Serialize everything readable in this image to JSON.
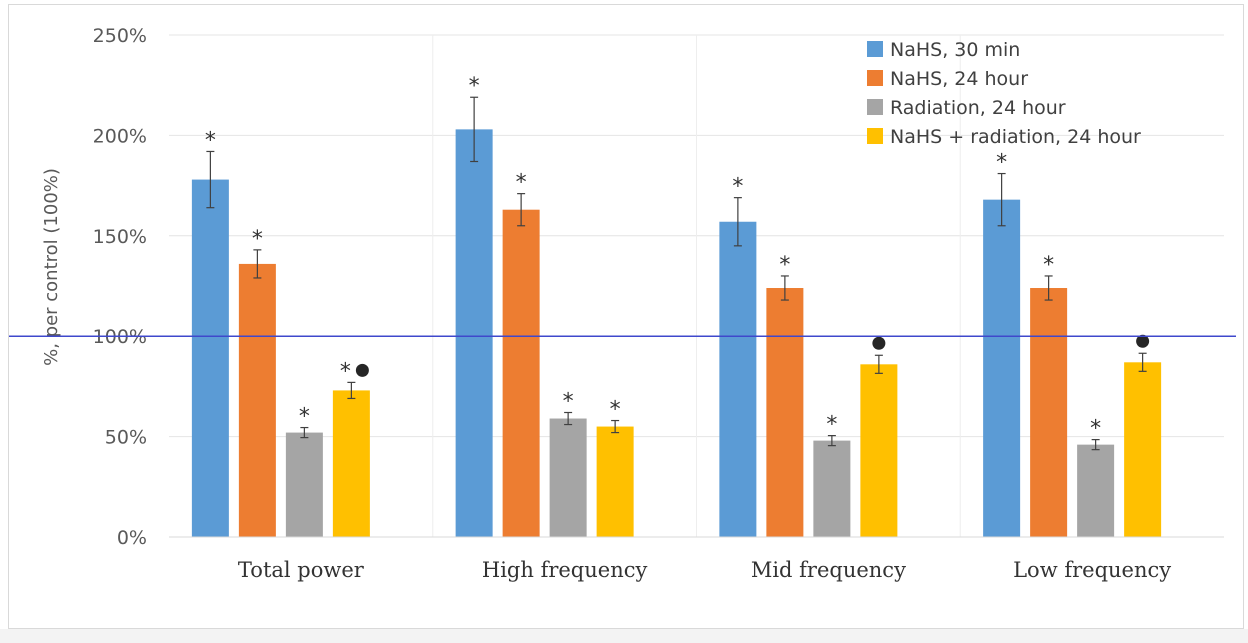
{
  "chart_data": {
    "type": "bar",
    "title": "",
    "xlabel": "",
    "ylabel": "%, per control (100%)",
    "ylim": [
      0,
      250
    ],
    "yticks": [
      "0%",
      "50%",
      "100%",
      "150%",
      "200%",
      "250%"
    ],
    "yticks_values": [
      0,
      50,
      100,
      150,
      200,
      250
    ],
    "grid": true,
    "legend_position": "top-right",
    "reference_line": {
      "value": 100,
      "color": "#3f48cc"
    },
    "categories": [
      "Total power",
      "High frequency",
      "Mid frequency",
      "Low frequency"
    ],
    "series": [
      {
        "name": "NaHS, 30 min",
        "color": "#5b9bd5",
        "values": [
          178,
          203,
          157,
          168
        ],
        "errors": [
          14,
          16,
          12,
          13
        ],
        "marks": [
          "*",
          "*",
          "*",
          "*"
        ]
      },
      {
        "name": "NaHS, 24 hour",
        "color": "#ed7d31",
        "values": [
          136,
          163,
          124,
          124
        ],
        "errors": [
          7,
          8,
          6,
          6
        ],
        "marks": [
          "*",
          "*",
          "*",
          "*"
        ]
      },
      {
        "name": "Radiation, 24 hour",
        "color": "#a5a5a5",
        "values": [
          52,
          59,
          48,
          46
        ],
        "errors": [
          2.5,
          3,
          2.5,
          2.5
        ],
        "marks": [
          "*",
          "*",
          "*",
          "*"
        ]
      },
      {
        "name": "NaHS + radiation, 24 hour",
        "color": "#ffc000",
        "values": [
          73,
          55,
          86,
          87
        ],
        "errors": [
          4,
          3,
          4.5,
          4.5
        ],
        "marks": [
          "*●",
          "*",
          "●",
          "●"
        ]
      }
    ]
  }
}
